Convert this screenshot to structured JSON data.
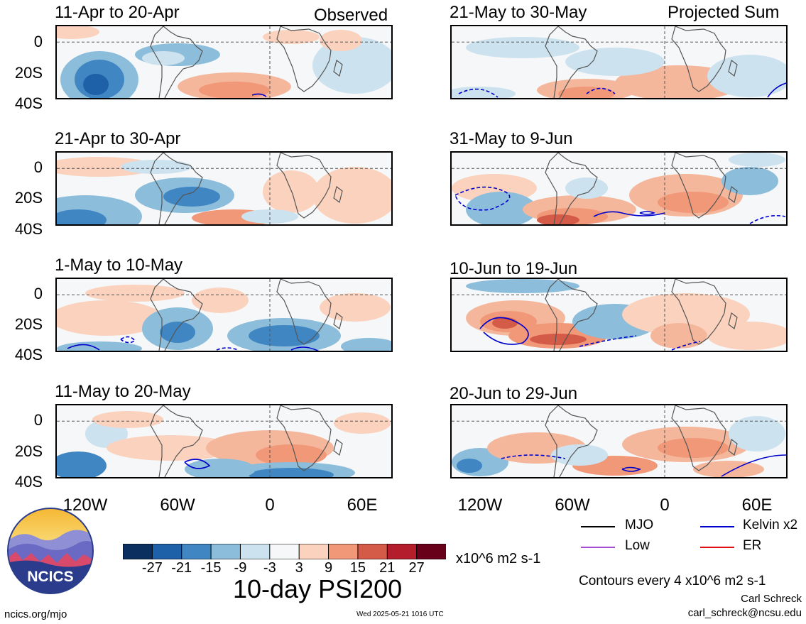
{
  "panel_titles": {
    "obs_1": "11-Apr to 20-Apr",
    "obs_2": "21-Apr to 30-Apr",
    "obs_3": "1-May to 10-May",
    "obs_4": "11-May to 20-May",
    "proj_1": "21-May to 30-May",
    "proj_2": "31-May to 9-Jun",
    "proj_3": "10-Jun to 19-Jun",
    "proj_4": "20-Jun to 29-Jun"
  },
  "left_corner_label": "Observed",
  "right_corner_label": "Projected Sum",
  "lat_labels": [
    "0",
    "20S",
    "40S"
  ],
  "lon_labels": [
    "120W",
    "60W",
    "0",
    "60E"
  ],
  "colorbar": {
    "colors": [
      "#0b2f5e",
      "#1f61a8",
      "#3f86c3",
      "#8cbddb",
      "#cde2ef",
      "#f5f7f8",
      "#fbd2bd",
      "#f09878",
      "#d55b49",
      "#b41d2b",
      "#68001a"
    ],
    "ticks": [
      "-27",
      "-21",
      "-15",
      "-9",
      "-3",
      "3",
      "9",
      "15",
      "21",
      "27"
    ],
    "units": "x10^6 m2 s-1"
  },
  "main_title": "10-day PSI200",
  "legend": {
    "mjo": "MJO",
    "kelvin": "Kelvin x2",
    "low": "Low",
    "er": "ER",
    "colors": {
      "mjo": "#000000",
      "kelvin": "#0000cc",
      "low": "#a64bd4",
      "er": "#e01010"
    }
  },
  "contour_note": "Contours every 4 x10^6 m2 s-1",
  "author": "Carl Schreck",
  "email": "carl_schreck@ncsu.edu",
  "site": "ncics.org/mjo",
  "timestamp": "Wed 2025-05-21 1016 UTC",
  "logo_text": "NCICS"
}
